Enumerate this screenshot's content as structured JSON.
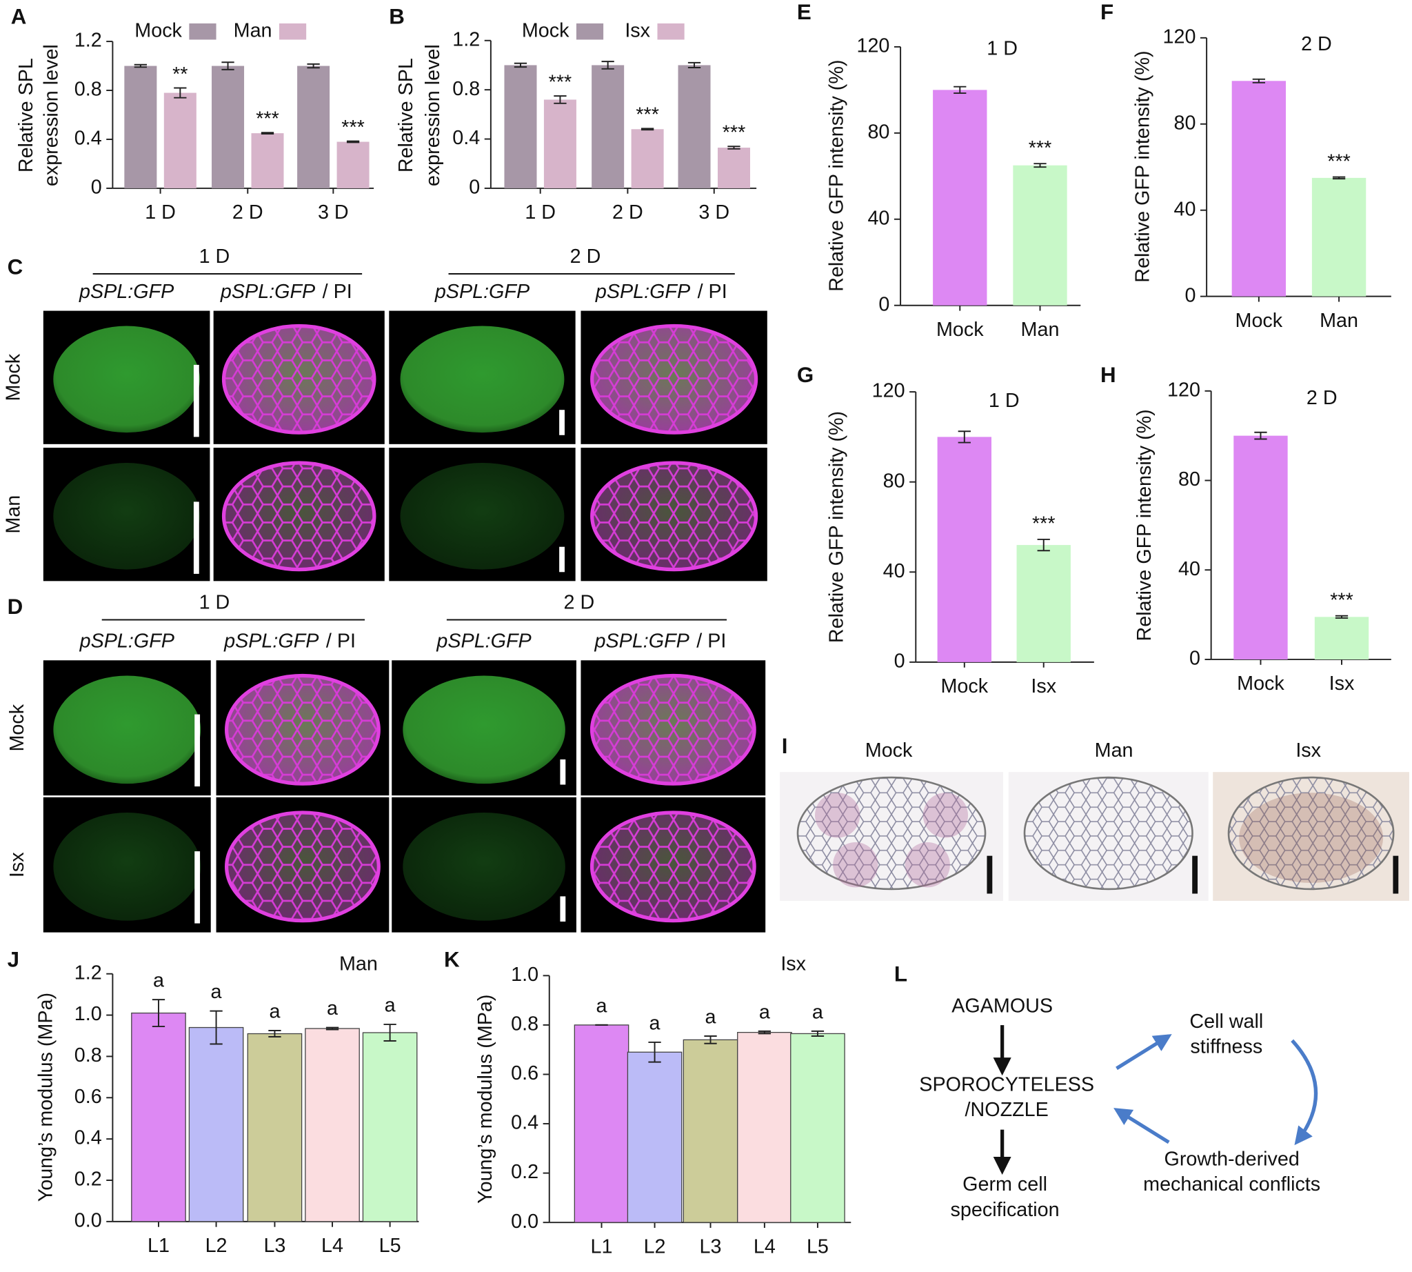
{
  "panel_letters": [
    "A",
    "B",
    "C",
    "D",
    "E",
    "F",
    "G",
    "H",
    "I",
    "J",
    "K",
    "L"
  ],
  "chart_data": [
    {
      "type": "grouped-bar",
      "ylabel": [
        "Relative SPL",
        "expression level"
      ],
      "categories": [
        "1 D",
        "2 D",
        "3 D"
      ],
      "series": [
        {
          "name": "Mock",
          "color": "#a797a7",
          "values": [
            1.0,
            1.0,
            1.0
          ],
          "errors": [
            0.01,
            0.03,
            0.015
          ]
        },
        {
          "name": "Man",
          "color": "#d7b4ca",
          "values": [
            0.78,
            0.45,
            0.38
          ],
          "errors": [
            0.04,
            0.005,
            0.005
          ],
          "significance": [
            "**",
            "***",
            "***"
          ]
        }
      ],
      "ylim": [
        0,
        1.2
      ],
      "yticks": [
        0,
        0.4,
        0.8,
        1.2
      ]
    },
    {
      "type": "grouped-bar",
      "ylabel": [
        "Relative SPL",
        "expression level"
      ],
      "categories": [
        "1 D",
        "2 D",
        "3 D"
      ],
      "series": [
        {
          "name": "Mock",
          "color": "#a797a7",
          "values": [
            1.0,
            1.0,
            1.0
          ],
          "errors": [
            0.015,
            0.03,
            0.02
          ]
        },
        {
          "name": "Isx",
          "color": "#d7b4ca",
          "values": [
            0.72,
            0.48,
            0.33
          ],
          "errors": [
            0.03,
            0.005,
            0.01
          ],
          "significance": [
            "***",
            "***",
            "***"
          ]
        }
      ],
      "ylim": [
        0,
        1.2
      ],
      "yticks": [
        0,
        0.4,
        0.8,
        1.2
      ]
    },
    {
      "type": "bar",
      "title": "1 D",
      "ylabel": "Relative GFP intensity (%)",
      "categories": [
        "Mock",
        "Man"
      ],
      "values": [
        100,
        65
      ],
      "errors": [
        1.5,
        0.8
      ],
      "colors": [
        "#dd88f3",
        "#c8f8c8"
      ],
      "significance": [
        null,
        "***"
      ],
      "ylim": [
        0,
        120
      ],
      "yticks": [
        0,
        40,
        80,
        120
      ]
    },
    {
      "type": "bar",
      "title": "2 D",
      "ylabel": "Relative GFP intensity (%)",
      "categories": [
        "Mock",
        "Man"
      ],
      "values": [
        100,
        55
      ],
      "errors": [
        0.8,
        0.4
      ],
      "colors": [
        "#dd88f3",
        "#c8f8c8"
      ],
      "significance": [
        null,
        "***"
      ],
      "ylim": [
        0,
        120
      ],
      "yticks": [
        0,
        40,
        80,
        120
      ]
    },
    {
      "type": "bar",
      "title": "1 D",
      "ylabel": "Relative GFP intensity (%)",
      "categories": [
        "Mock",
        "Isx"
      ],
      "values": [
        100,
        52
      ],
      "errors": [
        2.5,
        2.5
      ],
      "colors": [
        "#dd88f3",
        "#c8f8c8"
      ],
      "significance": [
        null,
        "***"
      ],
      "ylim": [
        0,
        120
      ],
      "yticks": [
        0,
        40,
        80,
        120
      ]
    },
    {
      "type": "bar",
      "title": "2 D",
      "ylabel": "Relative GFP intensity (%)",
      "categories": [
        "Mock",
        "Isx"
      ],
      "values": [
        100,
        19
      ],
      "errors": [
        1.5,
        0.5
      ],
      "colors": [
        "#dd88f3",
        "#c8f8c8"
      ],
      "significance": [
        null,
        "***"
      ],
      "ylim": [
        0,
        120
      ],
      "yticks": [
        0,
        40,
        80,
        120
      ]
    },
    {
      "type": "bar",
      "note": "Man",
      "ylabel": "Young’s modulus (MPa)",
      "categories": [
        "L1",
        "L2",
        "L3",
        "L4",
        "L5"
      ],
      "values": [
        1.01,
        0.94,
        0.91,
        0.935,
        0.915
      ],
      "errors": [
        0.065,
        0.08,
        0.015,
        0.005,
        0.04
      ],
      "colors": [
        "#dd88f3",
        "#bbbbf7",
        "#cccc99",
        "#fbdde0",
        "#c8f8c8"
      ],
      "significance": [
        "a",
        "a",
        "a",
        "a",
        "a"
      ],
      "outlined": true,
      "ylim": [
        0,
        1.2
      ],
      "yticks": [
        {
          "value": 0,
          "label": "0.0"
        },
        0.2,
        0.4,
        0.6,
        0.8,
        {
          "value": 1,
          "label": "1.0"
        },
        1.2
      ]
    },
    {
      "type": "bar",
      "note": "Isx",
      "ylabel": "Young’s modulus (MPa)",
      "categories": [
        "L1",
        "L2",
        "L3",
        "L4",
        "L5"
      ],
      "values": [
        0.8,
        0.69,
        0.74,
        0.77,
        0.765
      ],
      "errors": [
        0,
        0.04,
        0.015,
        0.005,
        0.01
      ],
      "colors": [
        "#dd88f3",
        "#bbbbf7",
        "#cccc99",
        "#fbdde0",
        "#c8f8c8"
      ],
      "significance": [
        "a",
        "a",
        "a",
        "a",
        "a"
      ],
      "outlined": true,
      "ylim": [
        0,
        1.0
      ],
      "yticks": [
        {
          "value": 0,
          "label": "0.0"
        },
        0.2,
        0.4,
        0.6,
        0.8,
        {
          "value": 1,
          "label": "1.0"
        }
      ]
    }
  ],
  "panel_c": {
    "days": [
      "1 D",
      "2 D"
    ],
    "columns": [
      {
        "label": "pSPL:GFP"
      },
      {
        "label": "pSPL:GFP",
        "suffix": "/ PI"
      },
      {
        "label": "pSPL:GFP"
      },
      {
        "label": "pSPL:GFP",
        "suffix": "/ PI"
      }
    ],
    "rows": [
      "Mock",
      "Man"
    ]
  },
  "panel_d": {
    "days": [
      "1 D",
      "2 D"
    ],
    "columns": [
      {
        "label": "pSPL:GFP"
      },
      {
        "label": "pSPL:GFP",
        "suffix": "/ PI"
      },
      {
        "label": "pSPL:GFP"
      },
      {
        "label": "pSPL:GFP",
        "suffix": "/ PI"
      }
    ],
    "rows": [
      "Mock",
      "Isx"
    ]
  },
  "panel_i": {
    "columns": [
      "Mock",
      "Man",
      "Isx"
    ]
  },
  "diagram": {
    "nodes": [
      {
        "lines": [
          "AGAMOUS"
        ]
      },
      {
        "lines": [
          "SPOROCYTELESS",
          "/NOZZLE"
        ]
      },
      {
        "lines": [
          "Germ cell",
          "specification"
        ]
      },
      {
        "lines": [
          "Cell wall",
          "stiffness"
        ]
      },
      {
        "lines": [
          "Growth-derived",
          "mechanical conflicts"
        ]
      }
    ]
  }
}
